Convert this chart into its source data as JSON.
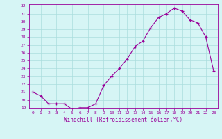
{
  "x": [
    0,
    1,
    2,
    3,
    4,
    5,
    6,
    7,
    8,
    9,
    10,
    11,
    12,
    13,
    14,
    15,
    16,
    17,
    18,
    19,
    20,
    21,
    22,
    23
  ],
  "y": [
    21.0,
    20.5,
    19.5,
    19.5,
    19.5,
    18.8,
    19.0,
    19.0,
    19.5,
    21.8,
    23.0,
    24.0,
    25.2,
    26.8,
    27.5,
    29.2,
    30.5,
    31.0,
    31.7,
    31.3,
    30.2,
    29.8,
    28.0,
    23.7
  ],
  "line_color": "#990099",
  "marker": "+",
  "bg_color": "#d6f5f5",
  "grid_color": "#aadddd",
  "xlabel": "Windchill (Refroidissement éolien,°C)",
  "xlabel_color": "#990099",
  "tick_color": "#990099",
  "spine_color": "#990099",
  "ylim": [
    19,
    32
  ],
  "yticks": [
    19,
    20,
    21,
    22,
    23,
    24,
    25,
    26,
    27,
    28,
    29,
    30,
    31,
    32
  ],
  "xticks": [
    0,
    1,
    2,
    3,
    4,
    5,
    6,
    7,
    8,
    9,
    10,
    11,
    12,
    13,
    14,
    15,
    16,
    17,
    18,
    19,
    20,
    21,
    22,
    23
  ]
}
